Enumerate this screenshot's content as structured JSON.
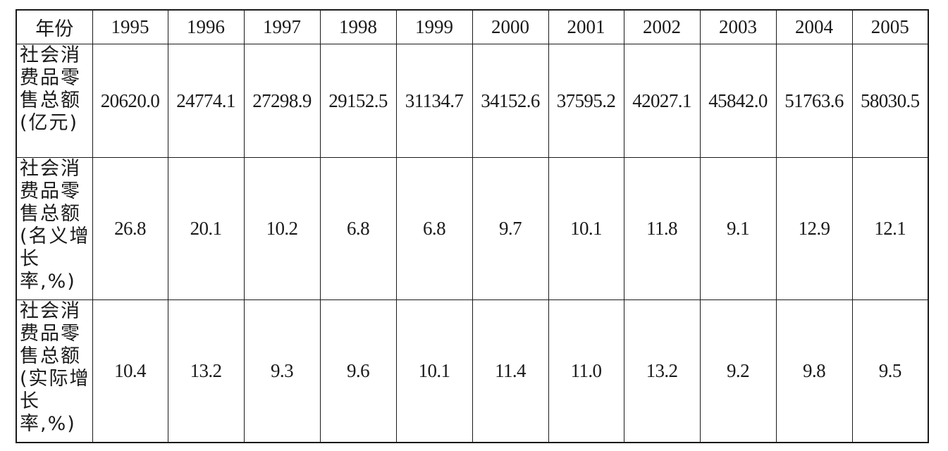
{
  "chart_data": {
    "type": "table",
    "header_label": "年份",
    "columns": [
      "1995",
      "1996",
      "1997",
      "1998",
      "1999",
      "2000",
      "2001",
      "2002",
      "2003",
      "2004",
      "2005"
    ],
    "rows": [
      {
        "label_lines": [
          "社会消",
          "费品零",
          "售总额",
          "(亿元)"
        ],
        "values": [
          "20620.0",
          "24774.1",
          "27298.9",
          "29152.5",
          "31134.7",
          "34152.6",
          "37595.2",
          "42027.1",
          "45842.0",
          "51763.6",
          "58030.5"
        ]
      },
      {
        "label_lines": [
          "社会消",
          "费品零",
          "售总额",
          "(名义增",
          "长率,%)"
        ],
        "values": [
          "26.8",
          "20.1",
          "10.2",
          "6.8",
          "6.8",
          "9.7",
          "10.1",
          "11.8",
          "9.1",
          "12.9",
          "12.1"
        ]
      },
      {
        "label_lines": [
          "社会消",
          "费品零",
          "售总额",
          "(实际增",
          "长率,%)"
        ],
        "values": [
          "10.4",
          "13.2",
          "9.3",
          "9.6",
          "10.1",
          "11.4",
          "11.0",
          "13.2",
          "9.2",
          "9.8",
          "9.5"
        ]
      }
    ]
  }
}
